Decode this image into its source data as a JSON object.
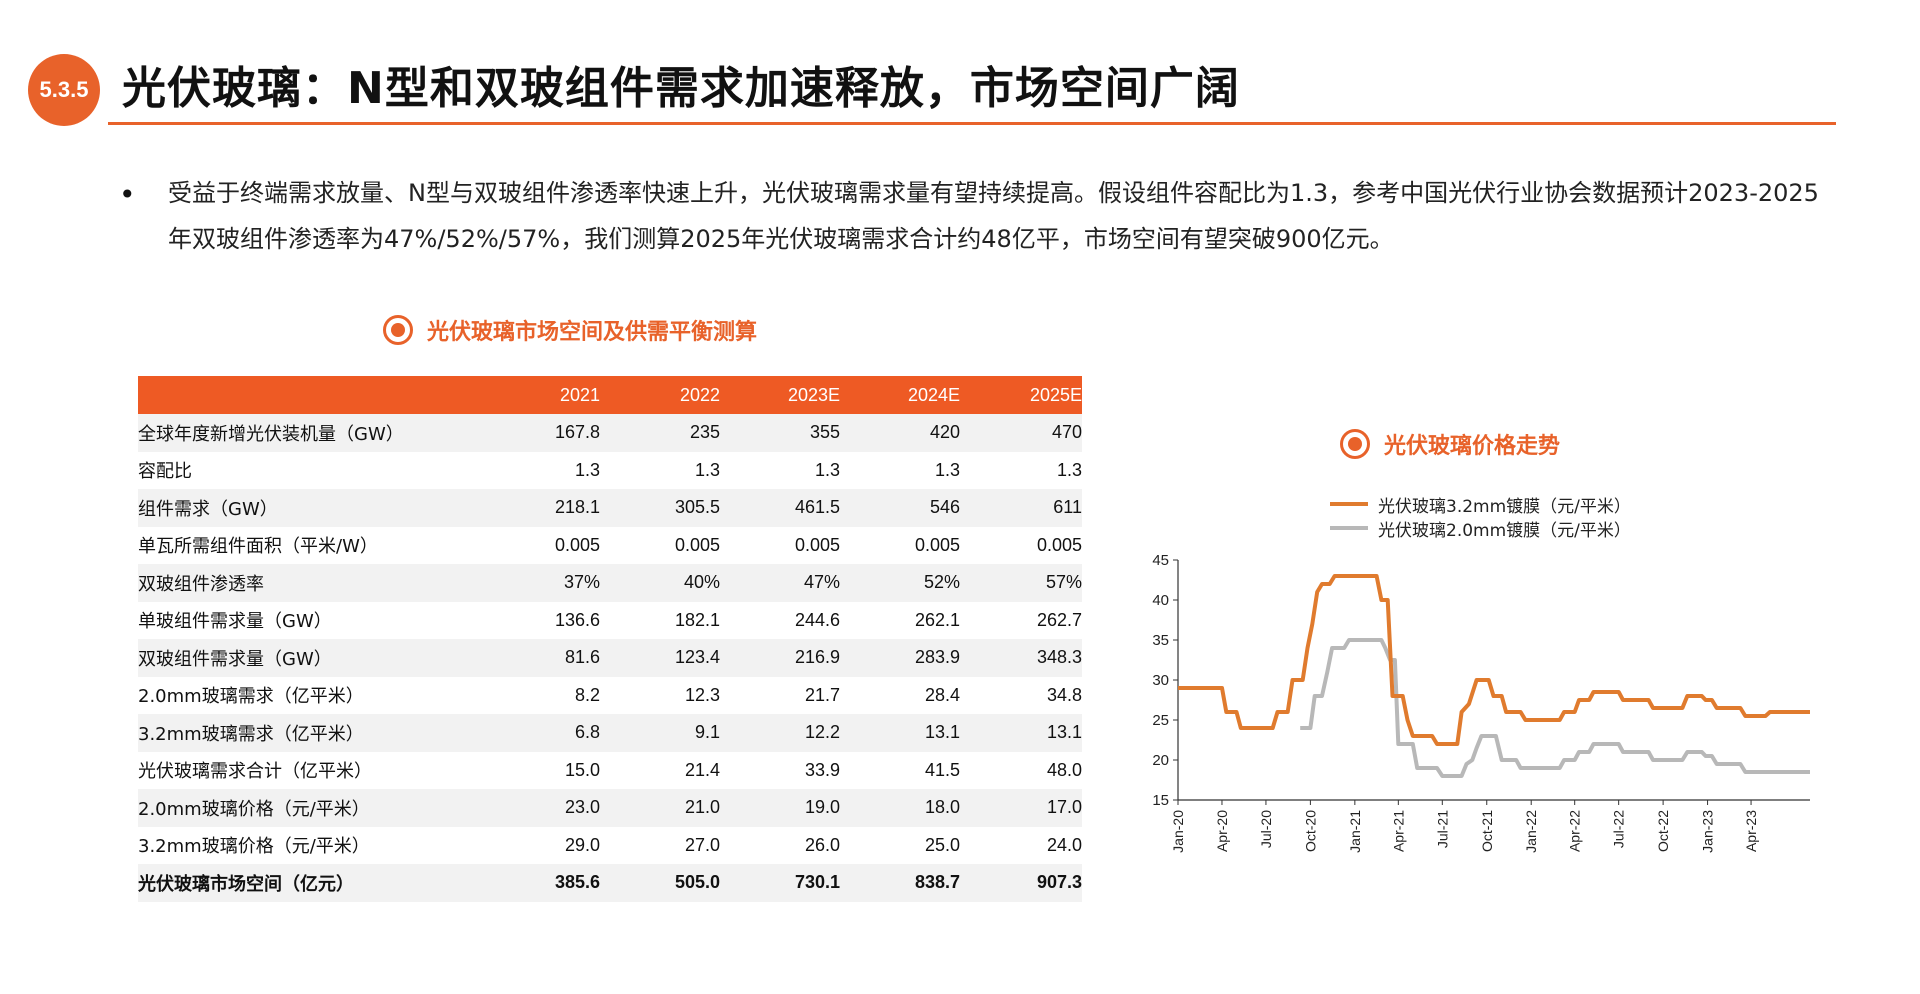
{
  "header": {
    "section_number": "5.3.5",
    "title": "光伏玻璃：N型和双玻组件需求加速释放，市场空间广阔"
  },
  "bullet": {
    "marker": "•",
    "text": "受益于终端需求放量、N型与双玻组件渗透率快速上升，光伏玻璃需求量有望持续提高。假设组件容配比为1.3，参考中国光伏行业协会数据预计2023-2025年双玻组件渗透率为47%/52%/57%，我们测算2025年光伏玻璃需求合计约48亿平，市场空间有望突破900亿元。"
  },
  "table_section": {
    "title": "光伏玻璃市场空间及供需平衡测算",
    "columns": [
      "",
      "2021",
      "2022",
      "2023E",
      "2024E",
      "2025E"
    ],
    "rows": [
      [
        "全球年度新增光伏装机量（GW）",
        "167.8",
        "235",
        "355",
        "420",
        "470"
      ],
      [
        "容配比",
        "1.3",
        "1.3",
        "1.3",
        "1.3",
        "1.3"
      ],
      [
        "组件需求（GW）",
        "218.1",
        "305.5",
        "461.5",
        "546",
        "611"
      ],
      [
        "单瓦所需组件面积（平米/W）",
        "0.005",
        "0.005",
        "0.005",
        "0.005",
        "0.005"
      ],
      [
        "双玻组件渗透率",
        "37%",
        "40%",
        "47%",
        "52%",
        "57%"
      ],
      [
        "单玻组件需求量（GW）",
        "136.6",
        "182.1",
        "244.6",
        "262.1",
        "262.7"
      ],
      [
        "双玻组件需求量（GW）",
        "81.6",
        "123.4",
        "216.9",
        "283.9",
        "348.3"
      ],
      [
        "2.0mm玻璃需求（亿平米）",
        "8.2",
        "12.3",
        "21.7",
        "28.4",
        "34.8"
      ],
      [
        "3.2mm玻璃需求（亿平米）",
        "6.8",
        "9.1",
        "12.2",
        "13.1",
        "13.1"
      ],
      [
        "光伏玻璃需求合计（亿平米）",
        "15.0",
        "21.4",
        "33.9",
        "41.5",
        "48.0"
      ],
      [
        "2.0mm玻璃价格（元/平米）",
        "23.0",
        "21.0",
        "19.0",
        "18.0",
        "17.0"
      ],
      [
        "3.2mm玻璃价格（元/平米）",
        "29.0",
        "27.0",
        "26.0",
        "25.0",
        "24.0"
      ],
      [
        "光伏玻璃市场空间（亿元）",
        "385.6",
        "505.0",
        "730.1",
        "838.7",
        "907.3"
      ]
    ]
  },
  "chart_section": {
    "title": "光伏玻璃价格走势"
  },
  "colors": {
    "accent": "#E8622A",
    "series_32": "#E07B2E",
    "series_20": "#B8B8B8",
    "table_header": "#EE5A24"
  },
  "icons": [
    "target-icon"
  ],
  "chart_data": {
    "type": "line",
    "title": "光伏玻璃价格走势",
    "xlabel": "",
    "ylabel": "",
    "ylim": [
      15,
      45
    ],
    "yticks": [
      15,
      20,
      25,
      30,
      35,
      40,
      45
    ],
    "xlim": [
      "2020-01",
      "2023-08"
    ],
    "xticks": [
      "Jan-20",
      "Apr-20",
      "Jul-20",
      "Oct-20",
      "Jan-21",
      "Apr-21",
      "Jul-21",
      "Oct-21",
      "Jan-22",
      "Apr-22",
      "Jul-22",
      "Oct-22",
      "Jan-23",
      "Apr-23"
    ],
    "legend_position": "top",
    "grid": false,
    "series": [
      {
        "name": "光伏玻璃3.2mm镀膜（元/平米）",
        "color": "#E07B2E",
        "points": [
          [
            "2020-01-01",
            29
          ],
          [
            "2020-04-01",
            29
          ],
          [
            "2020-04-10",
            26
          ],
          [
            "2020-05-01",
            26
          ],
          [
            "2020-05-10",
            24
          ],
          [
            "2020-07-15",
            24
          ],
          [
            "2020-07-25",
            26
          ],
          [
            "2020-08-15",
            26
          ],
          [
            "2020-08-25",
            30
          ],
          [
            "2020-09-15",
            30
          ],
          [
            "2020-09-25",
            34
          ],
          [
            "2020-10-05",
            37
          ],
          [
            "2020-10-15",
            41
          ],
          [
            "2020-10-25",
            42
          ],
          [
            "2020-11-10",
            42
          ],
          [
            "2020-11-20",
            43
          ],
          [
            "2021-02-15",
            43
          ],
          [
            "2021-02-25",
            40
          ],
          [
            "2021-03-10",
            40
          ],
          [
            "2021-03-20",
            28
          ],
          [
            "2021-04-10",
            28
          ],
          [
            "2021-04-20",
            25
          ],
          [
            "2021-05-01",
            23
          ],
          [
            "2021-06-10",
            23
          ],
          [
            "2021-06-20",
            22
          ],
          [
            "2021-08-01",
            22
          ],
          [
            "2021-08-10",
            26
          ],
          [
            "2021-08-25",
            27
          ],
          [
            "2021-09-10",
            30
          ],
          [
            "2021-10-05",
            30
          ],
          [
            "2021-10-15",
            28
          ],
          [
            "2021-11-01",
            28
          ],
          [
            "2021-11-10",
            26
          ],
          [
            "2021-12-10",
            26
          ],
          [
            "2021-12-20",
            25
          ],
          [
            "2022-03-01",
            25
          ],
          [
            "2022-03-10",
            26
          ],
          [
            "2022-04-01",
            26
          ],
          [
            "2022-04-10",
            27.5
          ],
          [
            "2022-05-01",
            27.5
          ],
          [
            "2022-05-10",
            28.5
          ],
          [
            "2022-07-01",
            28.5
          ],
          [
            "2022-07-10",
            27.5
          ],
          [
            "2022-09-01",
            27.5
          ],
          [
            "2022-09-10",
            26.5
          ],
          [
            "2022-11-10",
            26.5
          ],
          [
            "2022-11-20",
            28
          ],
          [
            "2022-12-20",
            28
          ],
          [
            "2022-12-28",
            27.5
          ],
          [
            "2023-01-10",
            27.5
          ],
          [
            "2023-01-20",
            26.5
          ],
          [
            "2023-03-10",
            26.5
          ],
          [
            "2023-03-20",
            25.5
          ],
          [
            "2023-05-01",
            25.5
          ],
          [
            "2023-05-10",
            26
          ],
          [
            "2023-08-01",
            26
          ]
        ]
      },
      {
        "name": "光伏玻璃2.0mm镀膜（元/平米）",
        "color": "#B8B8B8",
        "points": [
          [
            "2020-09-10",
            24
          ],
          [
            "2020-10-01",
            24
          ],
          [
            "2020-10-10",
            28
          ],
          [
            "2020-10-25",
            28
          ],
          [
            "2020-11-05",
            31
          ],
          [
            "2020-11-15",
            34
          ],
          [
            "2020-12-10",
            34
          ],
          [
            "2020-12-20",
            35
          ],
          [
            "2021-02-25",
            35
          ],
          [
            "2021-03-05",
            34
          ],
          [
            "2021-03-15",
            32.5
          ],
          [
            "2021-03-25",
            32.5
          ],
          [
            "2021-04-01",
            22
          ],
          [
            "2021-05-01",
            22
          ],
          [
            "2021-05-10",
            19
          ],
          [
            "2021-06-20",
            19
          ],
          [
            "2021-07-01",
            18
          ],
          [
            "2021-08-10",
            18
          ],
          [
            "2021-08-20",
            19.5
          ],
          [
            "2021-09-01",
            20
          ],
          [
            "2021-09-10",
            21.5
          ],
          [
            "2021-09-20",
            23
          ],
          [
            "2021-10-20",
            23
          ],
          [
            "2021-11-01",
            20
          ],
          [
            "2021-12-01",
            20
          ],
          [
            "2021-12-10",
            19
          ],
          [
            "2022-03-01",
            19
          ],
          [
            "2022-03-10",
            20
          ],
          [
            "2022-04-01",
            20
          ],
          [
            "2022-04-10",
            21
          ],
          [
            "2022-05-01",
            21
          ],
          [
            "2022-05-10",
            22
          ],
          [
            "2022-07-01",
            22
          ],
          [
            "2022-07-10",
            21
          ],
          [
            "2022-09-01",
            21
          ],
          [
            "2022-09-10",
            20
          ],
          [
            "2022-11-10",
            20
          ],
          [
            "2022-11-20",
            21
          ],
          [
            "2022-12-20",
            21
          ],
          [
            "2022-12-28",
            20.5
          ],
          [
            "2023-01-10",
            20.5
          ],
          [
            "2023-01-20",
            19.5
          ],
          [
            "2023-03-10",
            19.5
          ],
          [
            "2023-03-20",
            18.5
          ],
          [
            "2023-08-01",
            18.5
          ]
        ]
      }
    ]
  }
}
